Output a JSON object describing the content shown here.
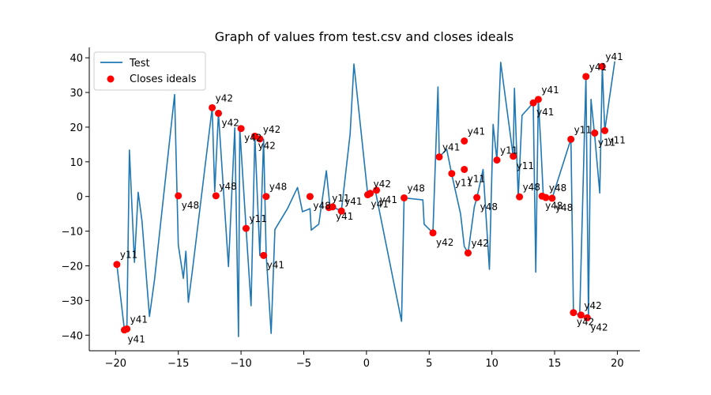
{
  "chart_data": {
    "type": "line+scatter",
    "title": "Graph of values from test.csv and closes ideals",
    "xlabel": "",
    "ylabel": "",
    "xlim": [
      -22.1,
      21.8
    ],
    "ylim": [
      -44.5,
      43
    ],
    "xticks": [
      -20,
      -15,
      -10,
      -5,
      0,
      5,
      10,
      15,
      20
    ],
    "yticks": [
      -40,
      -30,
      -20,
      -10,
      0,
      10,
      20,
      30,
      40
    ],
    "grid": false,
    "legend": {
      "position": "top-left",
      "entries": [
        {
          "label": "Test",
          "kind": "line",
          "color": "#1f77b4"
        },
        {
          "label": "Closes ideals",
          "kind": "marker",
          "color": "#ff0000"
        }
      ]
    },
    "series": [
      {
        "name": "Test",
        "type": "line",
        "color": "#1f77b4",
        "points": [
          [
            -19.9,
            -19.6
          ],
          [
            -19.3,
            -38.5
          ],
          [
            -19.1,
            -38.2
          ],
          [
            -18.9,
            13.4
          ],
          [
            -18.5,
            -19.0
          ],
          [
            -18.2,
            1.2
          ],
          [
            -17.9,
            -7.0
          ],
          [
            -17.3,
            -34.6
          ],
          [
            -16.9,
            -24.0
          ],
          [
            -15.3,
            29.4
          ],
          [
            -15.0,
            -14.0
          ],
          [
            -14.6,
            -23.6
          ],
          [
            -14.4,
            -15.8
          ],
          [
            -14.2,
            -30.5
          ],
          [
            -13.9,
            -22.0
          ],
          [
            -12.3,
            25.6
          ],
          [
            -12.1,
            1.4
          ],
          [
            -11.8,
            24.0
          ],
          [
            -11.0,
            -20.2
          ],
          [
            -10.5,
            19.8
          ],
          [
            -10.2,
            -40.4
          ],
          [
            -10.1,
            19.6
          ],
          [
            -9.6,
            -9.2
          ],
          [
            -9.2,
            -31.5
          ],
          [
            -8.9,
            17.4
          ],
          [
            -8.5,
            -17.0
          ],
          [
            -8.2,
            16.5
          ],
          [
            -8.0,
            -16.6
          ],
          [
            -7.6,
            -39.5
          ],
          [
            -7.3,
            -9.5
          ],
          [
            -6.3,
            -3.5
          ],
          [
            -5.5,
            2.6
          ],
          [
            -5.1,
            -4.4
          ],
          [
            -4.5,
            -3.5
          ],
          [
            -4.4,
            -9.7
          ],
          [
            -3.8,
            -8.0
          ],
          [
            -3.2,
            7.4
          ],
          [
            -2.9,
            -3.2
          ],
          [
            -2.7,
            -3.0
          ],
          [
            -2.0,
            -4.2
          ],
          [
            -1.3,
            18.0
          ],
          [
            -1.0,
            38.2
          ],
          [
            0.1,
            0.5
          ],
          [
            0.3,
            1.0
          ],
          [
            0.7,
            1.8
          ],
          [
            2.8,
            -36.0
          ],
          [
            3.0,
            -0.4
          ],
          [
            4.5,
            -1.0
          ],
          [
            4.6,
            -8.0
          ],
          [
            5.3,
            -10.5
          ],
          [
            5.7,
            31.6
          ],
          [
            5.8,
            11.4
          ],
          [
            6.4,
            13.6
          ],
          [
            6.8,
            6.4
          ],
          [
            7.5,
            -5.0
          ],
          [
            7.8,
            -14.4
          ],
          [
            8.1,
            -16.3
          ],
          [
            8.6,
            -3.0
          ],
          [
            8.8,
            -0.4
          ],
          [
            9.3,
            7.8
          ],
          [
            9.8,
            -21.0
          ],
          [
            10.1,
            20.8
          ],
          [
            10.4,
            10.5
          ],
          [
            10.7,
            38.7
          ],
          [
            11.7,
            11.6
          ],
          [
            11.8,
            31.2
          ],
          [
            12.1,
            -0.2
          ],
          [
            12.4,
            23.4
          ],
          [
            13.3,
            27.0
          ],
          [
            13.5,
            -21.8
          ],
          [
            13.7,
            28.0
          ],
          [
            13.9,
            15.0
          ],
          [
            14.1,
            0.2
          ],
          [
            14.3,
            -0.4
          ],
          [
            14.8,
            -0.5
          ],
          [
            16.3,
            16.6
          ],
          [
            16.5,
            -33.5
          ],
          [
            17.0,
            -34.2
          ],
          [
            17.5,
            34.6
          ],
          [
            17.7,
            -35.0
          ],
          [
            17.9,
            28.0
          ],
          [
            18.2,
            17.5
          ],
          [
            18.6,
            1.0
          ],
          [
            18.8,
            37.6
          ],
          [
            19.0,
            19.0
          ],
          [
            19.8,
            39.0
          ]
        ]
      },
      {
        "name": "Closes ideals",
        "type": "scatter",
        "color": "#ff0000",
        "points": [
          {
            "x": -19.9,
            "y": -19.6,
            "label": "y11"
          },
          {
            "x": -19.3,
            "y": -38.5,
            "label": "y41"
          },
          {
            "x": -19.1,
            "y": -38.2,
            "label": "y41"
          },
          {
            "x": -15.0,
            "y": 0.2,
            "label": "y48"
          },
          {
            "x": -12.3,
            "y": 25.6,
            "label": "y42"
          },
          {
            "x": -11.8,
            "y": 24.0,
            "label": "y42"
          },
          {
            "x": -12.0,
            "y": 0.2,
            "label": "y48"
          },
          {
            "x": -10.0,
            "y": 19.6,
            "label": "y42"
          },
          {
            "x": -9.6,
            "y": -9.2,
            "label": "y11"
          },
          {
            "x": -8.9,
            "y": 17.4,
            "label": "y42"
          },
          {
            "x": -8.5,
            "y": 16.6,
            "label": "y42"
          },
          {
            "x": -8.2,
            "y": -17.0,
            "label": "y41"
          },
          {
            "x": -8.0,
            "y": 0.0,
            "label": "y48"
          },
          {
            "x": -4.5,
            "y": 0.0,
            "label": "y48"
          },
          {
            "x": -3.0,
            "y": -3.2,
            "label": "y11"
          },
          {
            "x": -2.7,
            "y": -3.0,
            "label": "y41"
          },
          {
            "x": -2.0,
            "y": -4.2,
            "label": "y41"
          },
          {
            "x": 0.1,
            "y": 0.5,
            "label": "y41"
          },
          {
            "x": 0.3,
            "y": 0.9,
            "label": "y42"
          },
          {
            "x": 0.8,
            "y": 1.8,
            "label": "y41"
          },
          {
            "x": 3.0,
            "y": -0.4,
            "label": "y48"
          },
          {
            "x": 5.3,
            "y": -10.5,
            "label": "y42"
          },
          {
            "x": 5.8,
            "y": 11.4,
            "label": "y41"
          },
          {
            "x": 6.8,
            "y": 6.6,
            "label": "y11"
          },
          {
            "x": 7.8,
            "y": 16.0,
            "label": "y41"
          },
          {
            "x": 7.8,
            "y": 7.8,
            "label": "y11"
          },
          {
            "x": 8.1,
            "y": -16.3,
            "label": "y42"
          },
          {
            "x": 8.8,
            "y": -0.3,
            "label": "y48"
          },
          {
            "x": 10.4,
            "y": 10.5,
            "label": "y11"
          },
          {
            "x": 11.7,
            "y": 11.6,
            "label": "y11"
          },
          {
            "x": 12.2,
            "y": -0.1,
            "label": "y48"
          },
          {
            "x": 13.3,
            "y": 27.0,
            "label": "y41"
          },
          {
            "x": 13.7,
            "y": 28.0,
            "label": "y41"
          },
          {
            "x": 14.0,
            "y": 0.1,
            "label": "y48"
          },
          {
            "x": 14.3,
            "y": -0.3,
            "label": "y48"
          },
          {
            "x": 14.8,
            "y": -0.5,
            "label": "y48"
          },
          {
            "x": 16.3,
            "y": 16.5,
            "label": "y11"
          },
          {
            "x": 16.5,
            "y": -33.5,
            "label": "y42"
          },
          {
            "x": 17.1,
            "y": -34.2,
            "label": "y42"
          },
          {
            "x": 17.6,
            "y": -35.0,
            "label": "y42"
          },
          {
            "x": 17.5,
            "y": 34.6,
            "label": "y41"
          },
          {
            "x": 18.2,
            "y": 18.3,
            "label": "y11"
          },
          {
            "x": 18.8,
            "y": 37.5,
            "label": "y41"
          },
          {
            "x": 19.0,
            "y": 19.0,
            "label": "y11"
          }
        ]
      }
    ]
  }
}
